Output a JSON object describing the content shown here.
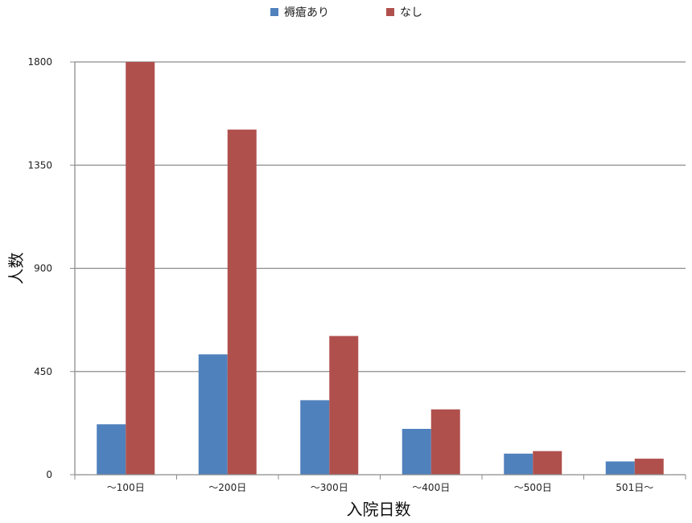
{
  "chart_data": {
    "type": "bar",
    "categories": [
      "〜100日",
      "〜200日",
      "〜300日",
      "〜400日",
      "〜500日",
      "501日〜"
    ],
    "series": [
      {
        "name": "褥瘡あり",
        "color": "#4F81BD",
        "values": [
          220,
          525,
          325,
          200,
          92,
          58
        ]
      },
      {
        "name": "なし",
        "color": "#B0504D",
        "values": [
          1800,
          1505,
          605,
          285,
          103,
          70
        ]
      }
    ],
    "xlabel": "入院日数",
    "ylabel": "人数",
    "ylim": [
      0,
      1800
    ],
    "yticks": [
      0,
      450,
      900,
      1350,
      1800
    ],
    "grid": true,
    "legend_position": "top-center"
  }
}
